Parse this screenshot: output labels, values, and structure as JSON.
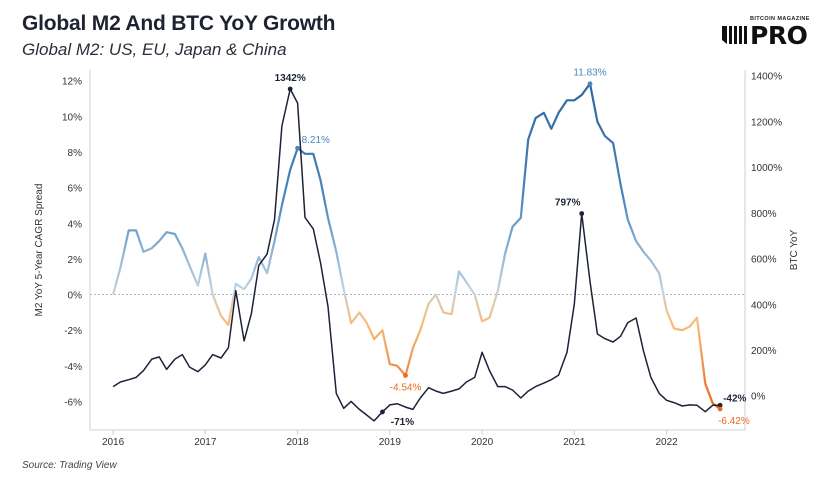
{
  "header": {
    "title": "Global M2 And BTC YoY Growth",
    "subtitle": "Global M2: US, EU, Japan & China"
  },
  "logo": {
    "small_text": "BITCOIN MAGAZINE",
    "big_text": "PRO"
  },
  "footer": {
    "source": "Source: Trading View"
  },
  "colors": {
    "btc_line": "#1c2238",
    "m2_positive": "#4a86bd",
    "m2_light": "#9ec9e2",
    "m2_neutral": "#c9c9c9",
    "m2_negative": "#f2a04a",
    "m2_deep_negative": "#ee6a1f",
    "zero_line": "#b5b5b5"
  },
  "chart_data": {
    "type": "line",
    "title": "Global M2 And BTC YoY Growth",
    "subtitle": "Global M2: US, EU, Japan & China",
    "xlabel": "",
    "ylabel_left": "M2 YoY 5-Year CAGR Spread",
    "ylabel_right": "BTC YoY",
    "xlim": [
      2015.75,
      2022.85
    ],
    "ylim_left": [
      -7.6,
      12.6
    ],
    "ylim_right": [
      -150,
      1425
    ],
    "x_ticks": [
      2016,
      2017,
      2018,
      2019,
      2020,
      2021,
      2022
    ],
    "x_tick_labels": [
      "2016",
      "2017",
      "2018",
      "2019",
      "2020",
      "2021",
      "2022"
    ],
    "y_left_ticks": [
      -6,
      -4,
      -2,
      0,
      2,
      4,
      6,
      8,
      10,
      12
    ],
    "y_left_tick_labels": [
      "-6%",
      "-4%",
      "-2%",
      "0%",
      "2%",
      "4%",
      "6%",
      "8%",
      "10%",
      "12%"
    ],
    "y_right_ticks": [
      0,
      200,
      400,
      600,
      800,
      1000,
      1200,
      1400
    ],
    "y_right_tick_labels": [
      "0%",
      "200%",
      "400%",
      "600%",
      "800%",
      "1000%",
      "1200%",
      "1400%"
    ],
    "series": [
      {
        "name": "Global M2 YoY 5-Year CAGR Spread",
        "axis": "left",
        "unit": "%",
        "x": [
          2016.0,
          2016.08,
          2016.17,
          2016.25,
          2016.33,
          2016.42,
          2016.5,
          2016.58,
          2016.67,
          2016.75,
          2016.83,
          2016.92,
          2017.0,
          2017.08,
          2017.17,
          2017.25,
          2017.33,
          2017.42,
          2017.5,
          2017.58,
          2017.67,
          2017.75,
          2017.83,
          2017.92,
          2018.0,
          2018.08,
          2018.17,
          2018.25,
          2018.33,
          2018.42,
          2018.5,
          2018.58,
          2018.67,
          2018.75,
          2018.83,
          2018.92,
          2019.0,
          2019.08,
          2019.17,
          2019.25,
          2019.33,
          2019.42,
          2019.5,
          2019.58,
          2019.67,
          2019.75,
          2019.83,
          2019.92,
          2020.0,
          2020.08,
          2020.17,
          2020.25,
          2020.33,
          2020.42,
          2020.5,
          2020.58,
          2020.67,
          2020.75,
          2020.83,
          2020.92,
          2021.0,
          2021.08,
          2021.17,
          2021.25,
          2021.33,
          2021.42,
          2021.5,
          2021.58,
          2021.67,
          2021.75,
          2021.83,
          2021.92,
          2022.0,
          2022.08,
          2022.17,
          2022.25,
          2022.33,
          2022.42,
          2022.5,
          2022.58
        ],
        "values": [
          0.0,
          1.5,
          3.6,
          3.6,
          2.4,
          2.6,
          3.0,
          3.5,
          3.4,
          2.6,
          1.6,
          0.5,
          2.3,
          0.0,
          -1.2,
          -1.7,
          0.6,
          0.3,
          0.9,
          2.1,
          1.2,
          3.0,
          5.0,
          7.0,
          8.21,
          7.9,
          7.9,
          6.4,
          4.3,
          2.4,
          0.3,
          -1.6,
          -1.0,
          -1.6,
          -2.5,
          -2.0,
          -3.9,
          -4.0,
          -4.54,
          -3.0,
          -2.0,
          -0.5,
          0.0,
          -1.0,
          -1.1,
          1.3,
          0.7,
          0.0,
          -1.5,
          -1.3,
          0.2,
          2.3,
          3.8,
          4.3,
          8.7,
          9.9,
          10.2,
          9.3,
          10.2,
          10.9,
          10.9,
          11.2,
          11.83,
          9.7,
          8.9,
          8.5,
          6.2,
          4.2,
          3.0,
          2.4,
          1.9,
          1.2,
          -0.9,
          -1.9,
          -2.0,
          -1.8,
          -1.3,
          -5.0,
          -6.1,
          -6.42
        ]
      },
      {
        "name": "BTC YoY",
        "axis": "right",
        "unit": "%",
        "x": [
          2016.0,
          2016.08,
          2016.17,
          2016.25,
          2016.33,
          2016.42,
          2016.5,
          2016.58,
          2016.67,
          2016.75,
          2016.83,
          2016.92,
          2017.0,
          2017.08,
          2017.17,
          2017.25,
          2017.33,
          2017.42,
          2017.5,
          2017.58,
          2017.67,
          2017.75,
          2017.83,
          2017.92,
          2018.0,
          2018.08,
          2018.17,
          2018.25,
          2018.33,
          2018.42,
          2018.5,
          2018.58,
          2018.67,
          2018.75,
          2018.83,
          2018.92,
          2019.0,
          2019.08,
          2019.17,
          2019.25,
          2019.33,
          2019.42,
          2019.5,
          2019.58,
          2019.67,
          2019.75,
          2019.83,
          2019.92,
          2020.0,
          2020.08,
          2020.17,
          2020.25,
          2020.33,
          2020.42,
          2020.5,
          2020.58,
          2020.67,
          2020.75,
          2020.83,
          2020.92,
          2021.0,
          2021.08,
          2021.17,
          2021.25,
          2021.33,
          2021.42,
          2021.5,
          2021.58,
          2021.67,
          2021.75,
          2021.83,
          2021.92,
          2022.0,
          2022.08,
          2022.17,
          2022.25,
          2022.33,
          2022.42,
          2022.5,
          2022.58
        ],
        "values": [
          40,
          60,
          70,
          80,
          110,
          160,
          170,
          115,
          160,
          180,
          125,
          105,
          135,
          180,
          165,
          210,
          460,
          240,
          360,
          570,
          620,
          770,
          1180,
          1342,
          1280,
          780,
          730,
          580,
          390,
          10,
          -55,
          -25,
          -60,
          -85,
          -110,
          -71,
          -40,
          -35,
          -50,
          -60,
          -10,
          35,
          20,
          10,
          20,
          30,
          60,
          80,
          190,
          110,
          40,
          40,
          25,
          -10,
          20,
          40,
          55,
          70,
          90,
          190,
          400,
          797,
          500,
          270,
          250,
          235,
          260,
          320,
          340,
          195,
          80,
          10,
          -20,
          -30,
          -45,
          -40,
          -42,
          -70,
          -42,
          -42
        ]
      }
    ],
    "annotations": [
      {
        "series": "BTC YoY",
        "x": 2017.92,
        "value": 1342,
        "label": "1342%"
      },
      {
        "series": "BTC YoY",
        "x": 2018.92,
        "value": -71,
        "label": "-71%"
      },
      {
        "series": "BTC YoY",
        "x": 2021.08,
        "value": 797,
        "label": "797%"
      },
      {
        "series": "BTC YoY",
        "x": 2022.58,
        "value": -42,
        "label": "-42%"
      },
      {
        "series": "Global M2 YoY 5-Year CAGR Spread",
        "x": 2018.0,
        "value": 8.21,
        "label": "8.21%"
      },
      {
        "series": "Global M2 YoY 5-Year CAGR Spread",
        "x": 2019.17,
        "value": -4.54,
        "label": "-4.54%"
      },
      {
        "series": "Global M2 YoY 5-Year CAGR Spread",
        "x": 2021.17,
        "value": 11.83,
        "label": "11.83%"
      },
      {
        "series": "Global M2 YoY 5-Year CAGR Spread",
        "x": 2022.58,
        "value": -6.42,
        "label": "-6.42%"
      }
    ]
  }
}
